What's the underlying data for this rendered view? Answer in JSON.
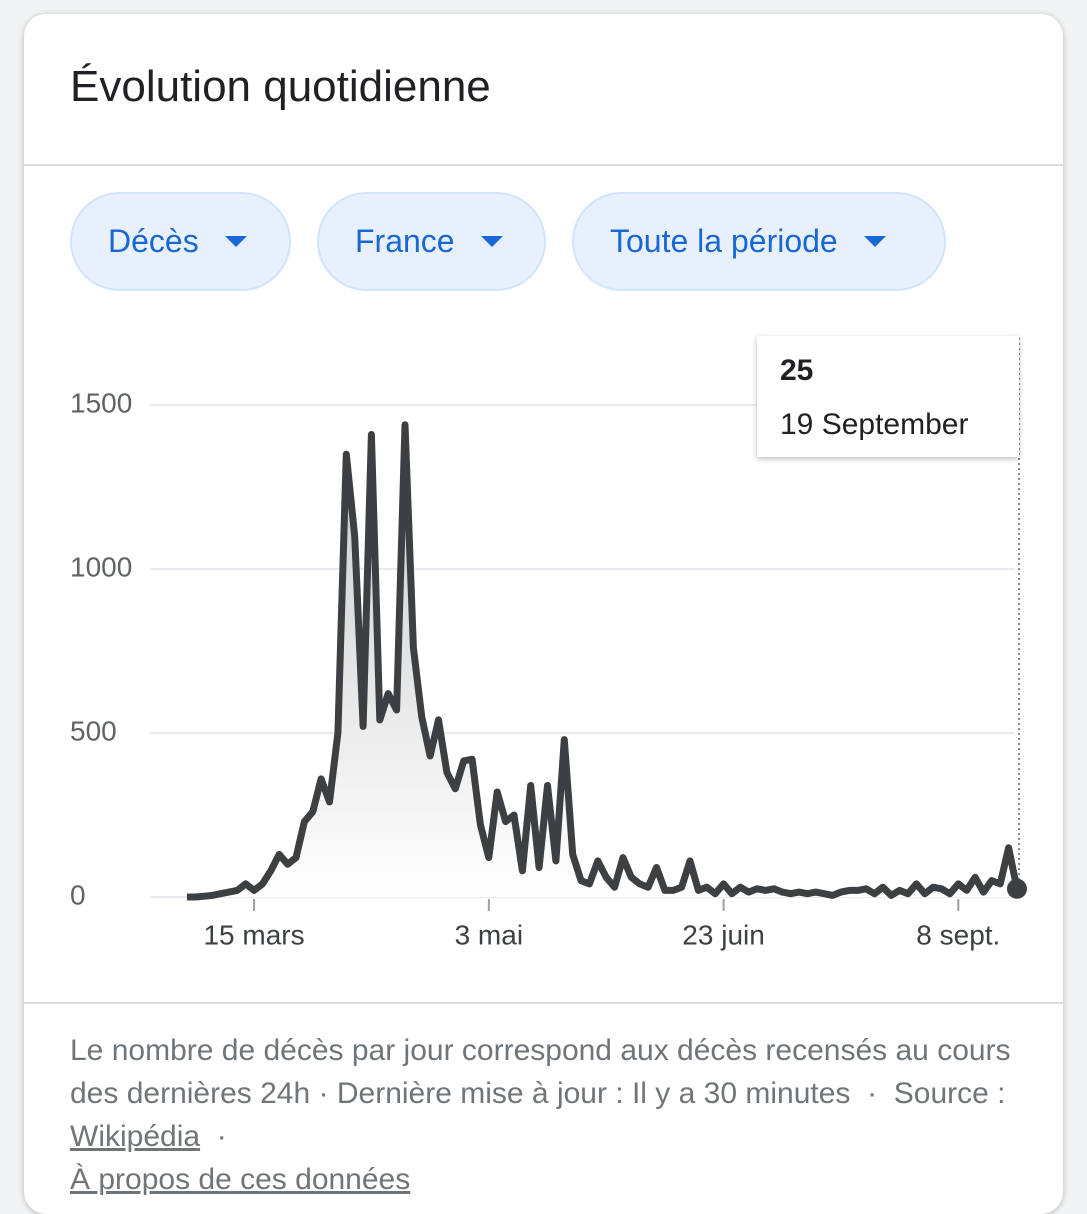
{
  "header": {
    "title": "Évolution quotidienne"
  },
  "filters": [
    "Décès",
    "France",
    "Toute la période"
  ],
  "chart_data": {
    "type": "line",
    "x": [
      0,
      1,
      2,
      3,
      4,
      5,
      6,
      7,
      8,
      9,
      10,
      11,
      12,
      13,
      14,
      15,
      16,
      17,
      18,
      19,
      20,
      21,
      22,
      23,
      24,
      25,
      26,
      27,
      28,
      29,
      30,
      31,
      32,
      33,
      34,
      35,
      36,
      37,
      38,
      39,
      40,
      41,
      42,
      43,
      44,
      45,
      46,
      47,
      48,
      49,
      50,
      51,
      52,
      53,
      54,
      55,
      56,
      57,
      58,
      59,
      60,
      61,
      62,
      63,
      64,
      65,
      66,
      67,
      68,
      69,
      70,
      71,
      72,
      73,
      74,
      75,
      76,
      77,
      78,
      79,
      80,
      81,
      82,
      83,
      84,
      85,
      86,
      87,
      88,
      89,
      90,
      91,
      92,
      93,
      94,
      95,
      96,
      97,
      98,
      99
    ],
    "series": [
      {
        "name": "Décès",
        "color": "#3c4043",
        "values": [
          0,
          0,
          2,
          5,
          10,
          15,
          20,
          40,
          20,
          40,
          80,
          130,
          100,
          120,
          230,
          260,
          360,
          290,
          500,
          1350,
          1100,
          520,
          1410,
          540,
          620,
          570,
          1440,
          760,
          550,
          430,
          540,
          380,
          330,
          415,
          420,
          220,
          120,
          320,
          230,
          250,
          80,
          340,
          90,
          340,
          110,
          480,
          130,
          50,
          40,
          110,
          60,
          30,
          120,
          60,
          40,
          30,
          90,
          20,
          20,
          30,
          110,
          20,
          30,
          10,
          40,
          10,
          30,
          15,
          25,
          20,
          25,
          15,
          10,
          15,
          10,
          15,
          10,
          5,
          15,
          20,
          20,
          25,
          10,
          30,
          5,
          20,
          10,
          40,
          10,
          30,
          25,
          10,
          40,
          20,
          60,
          15,
          50,
          40,
          150,
          25
        ]
      }
    ],
    "xlim": [
      0,
      99
    ],
    "xticks": [
      {
        "value": 8,
        "label": "15 mars"
      },
      {
        "value": 36,
        "label": "3 mai"
      },
      {
        "value": 64,
        "label": "23 juin"
      },
      {
        "value": 92,
        "label": "8 sept."
      }
    ],
    "ylim": [
      0,
      1500
    ],
    "yticks": [
      0,
      500,
      1000,
      1500
    ],
    "grid": true,
    "tooltip_date": "19 September"
  },
  "footer": {
    "description": "Le nombre de décès par jour correspond aux décès recensés au cours des dernières 24h",
    "separator": "·",
    "updated": "Dernière mise à jour : Il y a 30 minutes",
    "source_label": "Source :",
    "source": "Wikipédia",
    "about": "À propos de ces données"
  }
}
